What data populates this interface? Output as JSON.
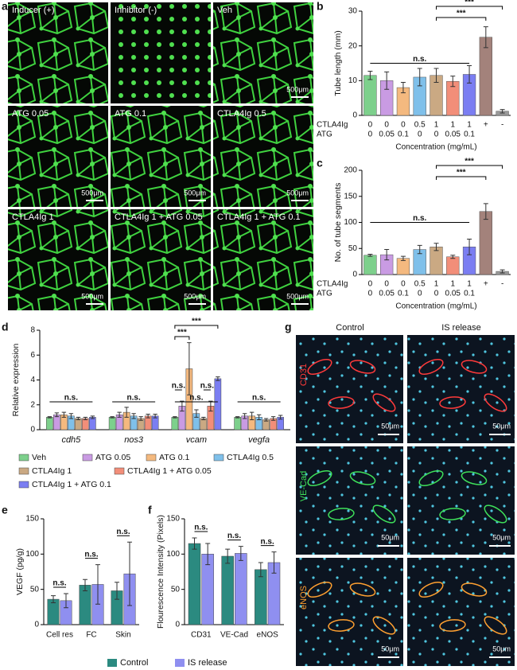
{
  "panel_a": {
    "panel": "a",
    "tiles": [
      "Inducer (+)",
      "Inhibitor (-)",
      "Veh",
      "ATG 0.05",
      "ATG 0.1",
      "CTLA4Ig 0.5",
      "CTLA4Ig 1",
      "CTLA4Ig 1 + ATG 0.05",
      "CTLA4Ig 1 + ATG 0.1"
    ],
    "scale_bar": "500μm"
  },
  "panel_g": {
    "panel": "g",
    "columns": [
      "Control",
      "IS release"
    ],
    "rows": [
      "CD31",
      "VE-Cad",
      "eNOS"
    ],
    "scale_bar": "50μm"
  },
  "chart_data": [
    {
      "type": "bar",
      "panel": "b",
      "y_label": "Tube length (mm)",
      "x_label": "Concentration (mg/mL)",
      "category_rows": [
        {
          "name": "CTLA4Ig",
          "labels": [
            "0",
            "0",
            "0",
            "0.5",
            "1",
            "1",
            "1",
            "+",
            "-"
          ]
        },
        {
          "name": "ATG",
          "labels": [
            "0",
            "0.05",
            "0.1",
            "0",
            "0",
            "0.05",
            "0.1",
            null,
            null
          ]
        }
      ],
      "values": [
        11.5,
        10,
        8,
        11,
        11.5,
        9.8,
        11.8,
        22.5,
        1.2
      ],
      "errors": [
        1.2,
        2.5,
        1.5,
        2.5,
        2,
        1.5,
        2.5,
        3,
        0.5
      ],
      "colors": [
        "#7dd08c",
        "#c99be3",
        "#f4b97f",
        "#7fc0ea",
        "#caa983",
        "#f28e79",
        "#7b7ef2",
        "#a3827b",
        "#9a9a9a"
      ],
      "ylim": [
        0,
        30
      ],
      "yticks": [
        0,
        10,
        20,
        30
      ],
      "annotations": [
        "***",
        "***",
        "n.s."
      ]
    },
    {
      "type": "bar",
      "panel": "c",
      "y_label": "No. of tube segments",
      "x_label": "Concentration (mg/mL)",
      "category_rows": [
        {
          "name": "CTLA4Ig",
          "labels": [
            "0",
            "0",
            "0",
            "0.5",
            "1",
            "1",
            "1",
            "+",
            "-"
          ]
        },
        {
          "name": "ATG",
          "labels": [
            "0",
            "0.05",
            "0.1",
            "0",
            "0",
            "0.05",
            "0.1",
            null,
            null
          ]
        }
      ],
      "values": [
        37,
        38,
        31,
        48,
        53,
        34,
        53,
        121,
        6
      ],
      "errors": [
        2,
        10,
        4,
        8,
        7,
        3,
        15,
        15,
        3
      ],
      "colors": [
        "#7dd08c",
        "#c99be3",
        "#f4b97f",
        "#7fc0ea",
        "#caa983",
        "#f28e79",
        "#7b7ef2",
        "#a3827b",
        "#9a9a9a"
      ],
      "ylim": [
        0,
        200
      ],
      "yticks": [
        0,
        50,
        100,
        150,
        200
      ],
      "annotations": [
        "***",
        "***",
        "n.s."
      ]
    },
    {
      "type": "grouped_bar",
      "panel": "d",
      "y_label": "Relative expression",
      "categories": [
        "cdh5",
        "nos3",
        "vcam",
        "vegfa"
      ],
      "series": [
        {
          "name": "Veh",
          "color": "#7dd08c",
          "values": [
            1,
            1,
            1,
            1
          ],
          "errors": [
            0.05,
            0.05,
            0.05,
            0.05
          ]
        },
        {
          "name": "ATG 0.05",
          "color": "#c99be3",
          "values": [
            1.2,
            1.2,
            1.9,
            1.1
          ],
          "errors": [
            0.15,
            0.2,
            0.4,
            0.2
          ]
        },
        {
          "name": "ATG 0.1",
          "color": "#f4b97f",
          "values": [
            1.2,
            1.4,
            4.9,
            1.1
          ],
          "errors": [
            0.2,
            0.4,
            2.1,
            0.3
          ]
        },
        {
          "name": "CTLA4Ig 0.5",
          "color": "#7fc0ea",
          "values": [
            1.1,
            1.1,
            1.3,
            1
          ],
          "errors": [
            0.2,
            0.2,
            0.3,
            0.2
          ]
        },
        {
          "name": "CTLA4Ig 1",
          "color": "#caa983",
          "values": [
            0.9,
            0.9,
            0.9,
            0.8
          ],
          "errors": [
            0.1,
            0.15,
            0.1,
            0.1
          ]
        },
        {
          "name": "CTLA4Ig 1 + ATG 0.05",
          "color": "#f28e79",
          "values": [
            0.9,
            1.1,
            1.9,
            0.9
          ],
          "errors": [
            0.1,
            0.15,
            0.4,
            0.15
          ]
        },
        {
          "name": "CTLA4Ig 1 + ATG 0.1",
          "color": "#7b7ef2",
          "values": [
            1,
            1.1,
            4.1,
            1
          ],
          "errors": [
            0.1,
            0.15,
            0.15,
            0.15
          ]
        }
      ],
      "ylim": [
        0,
        8
      ],
      "yticks": [
        0,
        2,
        4,
        6,
        8
      ],
      "annotations": [
        "n.s.",
        "n.s.",
        "n.s.",
        "n.s.",
        "***",
        "***",
        "n.s.",
        "n.s."
      ]
    },
    {
      "type": "grouped_bar",
      "panel": "e",
      "y_label": "VEGF (pg/g)",
      "categories": [
        "Cell res",
        "FC",
        "Skin"
      ],
      "series": [
        {
          "name": "Control",
          "color": "#2b8a80",
          "values": [
            36,
            56,
            48
          ],
          "errors": [
            5,
            8,
            12
          ]
        },
        {
          "name": "IS release",
          "color": "#8f8ff0",
          "values": [
            34,
            57,
            72
          ],
          "errors": [
            10,
            28,
            45
          ]
        }
      ],
      "ylim": [
        0,
        150
      ],
      "yticks": [
        0,
        50,
        100,
        150
      ],
      "annotations": [
        "n.s.",
        "n.s.",
        "n.s."
      ]
    },
    {
      "type": "grouped_bar",
      "panel": "f",
      "y_label": "Flourescence Intensity (Pixels)",
      "categories": [
        "CD31",
        "VE-Cad",
        "eNOS"
      ],
      "series": [
        {
          "name": "Control",
          "color": "#2b8a80",
          "values": [
            115,
            97,
            78
          ],
          "errors": [
            8,
            10,
            10
          ]
        },
        {
          "name": "IS release",
          "color": "#8f8ff0",
          "values": [
            100,
            101,
            88
          ],
          "errors": [
            15,
            10,
            15
          ]
        }
      ],
      "ylim": [
        0,
        150
      ],
      "yticks": [
        0,
        50,
        100,
        150
      ],
      "annotations": [
        "n.s.",
        "n.s.",
        "n.s."
      ]
    }
  ]
}
